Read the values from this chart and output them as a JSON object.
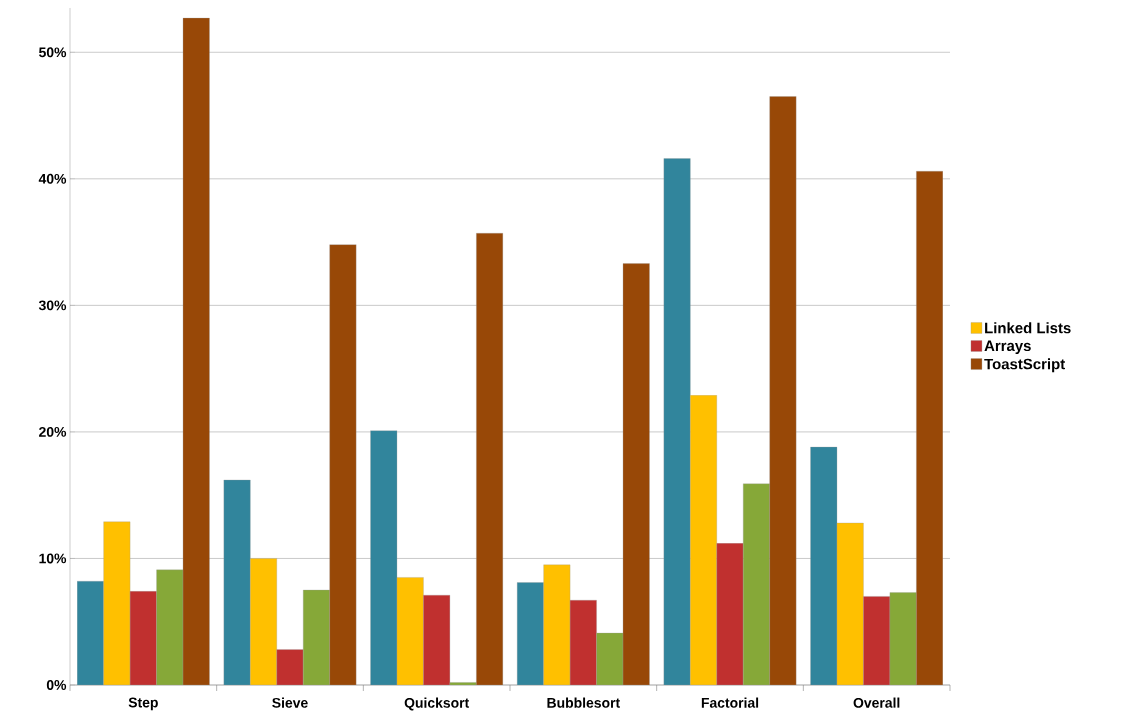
{
  "chart_data": {
    "type": "bar",
    "categories": [
      "Step",
      "Sieve",
      "Quicksort",
      "Bubblesort",
      "Factorial",
      "Overall"
    ],
    "series": [
      {
        "color": "#31859c",
        "values": [
          8.2,
          16.2,
          20.1,
          8.1,
          41.6,
          18.8
        ]
      },
      {
        "name": "Linked Lists",
        "color": "#ffc000",
        "values": [
          12.9,
          10.0,
          8.5,
          9.5,
          22.9,
          12.8
        ]
      },
      {
        "name": "Arrays",
        "color": "#c0302f",
        "values": [
          7.4,
          2.8,
          7.1,
          6.7,
          11.2,
          7.0
        ]
      },
      {
        "color": "#86a838",
        "values": [
          9.1,
          7.5,
          0.2,
          4.1,
          15.9,
          7.3
        ]
      },
      {
        "name": "ToastScript",
        "color": "#984807",
        "values": [
          52.7,
          34.8,
          35.7,
          33.3,
          46.5,
          40.6
        ]
      }
    ],
    "ylim": [
      0,
      53.5
    ],
    "yticks": [
      {
        "value": 0,
        "label": "0%"
      },
      {
        "value": 10,
        "label": "10%"
      },
      {
        "value": 20,
        "label": "20%"
      },
      {
        "value": 30,
        "label": "30%"
      },
      {
        "value": 40,
        "label": "40%"
      },
      {
        "value": 50,
        "label": "50%"
      }
    ],
    "grid": "y",
    "legend": "right"
  }
}
